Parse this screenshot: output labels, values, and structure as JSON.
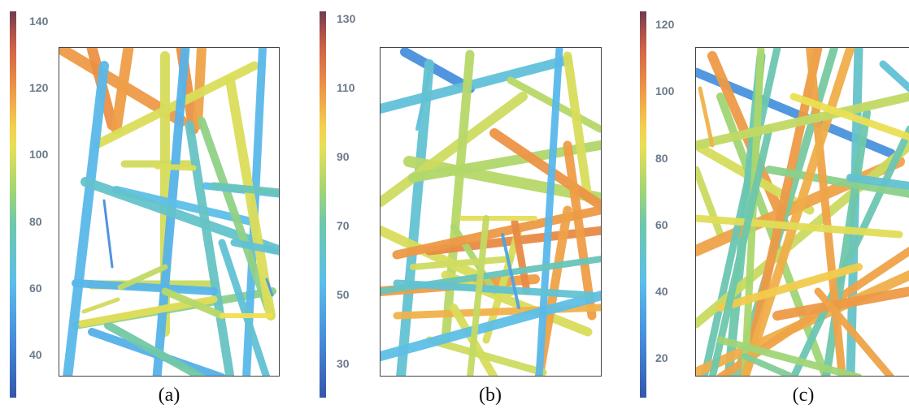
{
  "panels": [
    {
      "id": "a",
      "caption": "(a)",
      "colorbar_ticks": [
        "140",
        "120",
        "100",
        "80",
        "60",
        "40"
      ],
      "colorbar_range": [
        27,
        143
      ],
      "tick_values": [
        140,
        120,
        100,
        80,
        60,
        40
      ],
      "fibers": [
        {
          "c": 119
        },
        {
          "c": 121
        },
        {
          "c": 118
        },
        {
          "c": 121
        },
        {
          "c": 117
        },
        {
          "c": 100
        },
        {
          "c": 99
        },
        {
          "c": 98
        },
        {
          "c": 96
        },
        {
          "c": 85
        },
        {
          "c": 60
        },
        {
          "c": 58
        },
        {
          "c": 63
        },
        {
          "c": 57
        },
        {
          "c": 60
        },
        {
          "c": 70
        },
        {
          "c": 72
        },
        {
          "c": 68
        },
        {
          "c": 86
        },
        {
          "c": 80
        },
        {
          "c": 62
        },
        {
          "c": 59
        },
        {
          "c": 95
        },
        {
          "c": 100
        },
        {
          "c": 101
        },
        {
          "c": 98
        },
        {
          "c": 93
        },
        {
          "c": 75
        },
        {
          "c": 68
        },
        {
          "c": 45
        },
        {
          "c": 100
        },
        {
          "c": 104
        },
        {
          "c": 50
        }
      ]
    },
    {
      "id": "b",
      "caption": "(b)",
      "colorbar_ticks": [
        "130",
        "110",
        "90",
        "70",
        "50",
        "30"
      ],
      "colorbar_range": [
        20,
        132
      ],
      "tick_values": [
        130,
        110,
        90,
        70,
        50,
        30
      ],
      "fibers": [
        {
          "c": 38
        },
        {
          "c": 58
        },
        {
          "c": 56
        },
        {
          "c": 60
        },
        {
          "c": 84
        },
        {
          "c": 88
        },
        {
          "c": 84
        },
        {
          "c": 84
        },
        {
          "c": 83
        },
        {
          "c": 90
        },
        {
          "c": 90
        },
        {
          "c": 110
        },
        {
          "c": 112
        },
        {
          "c": 108
        },
        {
          "c": 90
        },
        {
          "c": 90
        },
        {
          "c": 82
        },
        {
          "c": 108
        },
        {
          "c": 109
        },
        {
          "c": 107
        },
        {
          "c": 112
        },
        {
          "c": 104
        },
        {
          "c": 92
        },
        {
          "c": 90
        },
        {
          "c": 88
        },
        {
          "c": 55
        },
        {
          "c": 52
        },
        {
          "c": 66
        },
        {
          "c": 60
        },
        {
          "c": 88
        },
        {
          "c": 86
        },
        {
          "c": 45
        }
      ]
    },
    {
      "id": "c",
      "caption": "(c)",
      "colorbar_ticks": [
        "120",
        "100",
        "80",
        "60",
        "40",
        "20"
      ],
      "colorbar_range": [
        8,
        124
      ],
      "tick_values": [
        120,
        100,
        80,
        60,
        40,
        20
      ],
      "fibers": [
        {
          "c": 28
        },
        {
          "c": 100
        },
        {
          "c": 80
        },
        {
          "c": 70
        },
        {
          "c": 78
        },
        {
          "c": 60
        },
        {
          "c": 98
        },
        {
          "c": 58
        },
        {
          "c": 62
        },
        {
          "c": 52
        },
        {
          "c": 78
        },
        {
          "c": 96
        },
        {
          "c": 98
        },
        {
          "c": 100
        },
        {
          "c": 72
        },
        {
          "c": 60
        },
        {
          "c": 58
        },
        {
          "c": 66
        },
        {
          "c": 98
        },
        {
          "c": 96
        },
        {
          "c": 100
        },
        {
          "c": 98
        },
        {
          "c": 90
        },
        {
          "c": 82
        },
        {
          "c": 48
        },
        {
          "c": 50
        },
        {
          "c": 60
        },
        {
          "c": 76
        },
        {
          "c": 70
        },
        {
          "c": 64
        },
        {
          "c": 84
        },
        {
          "c": 95
        }
      ]
    }
  ]
}
